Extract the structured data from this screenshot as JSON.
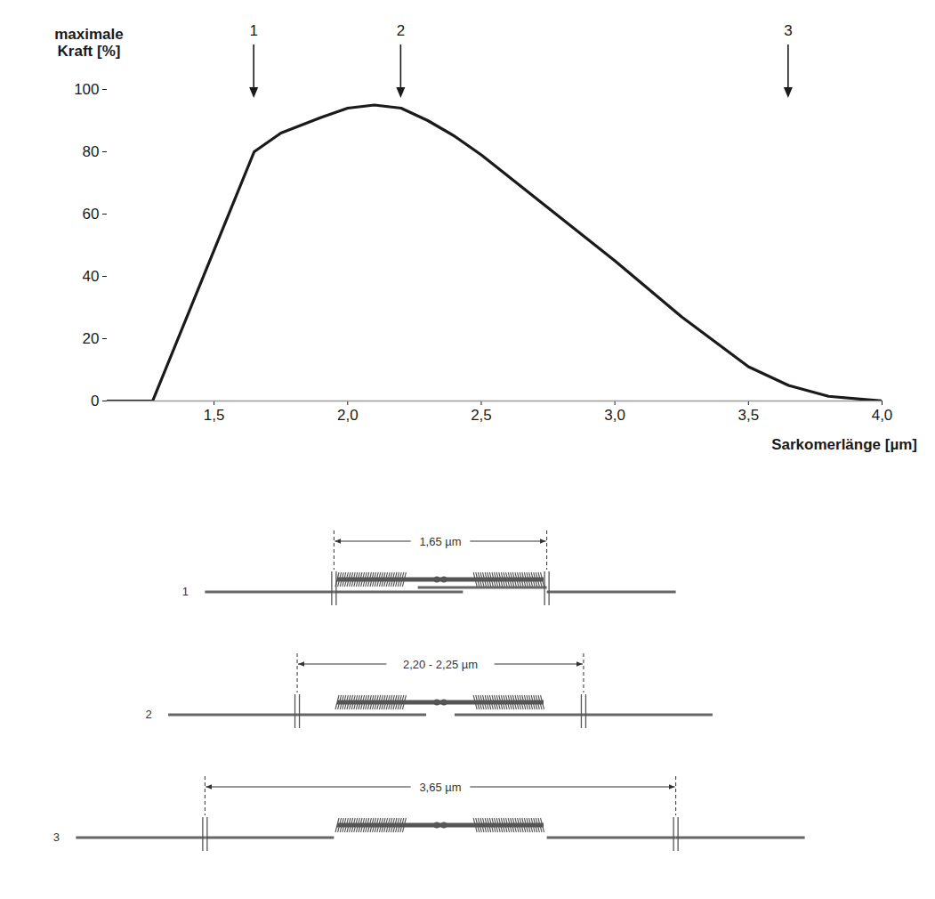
{
  "chart_data": {
    "type": "line",
    "x_label": "Sarkomerlänge [µm]",
    "y_label": "maximale Kraft [%]",
    "x": [
      1.1,
      1.27,
      1.65,
      1.75,
      1.9,
      2.0,
      2.1,
      2.2,
      2.3,
      2.4,
      2.5,
      2.75,
      3.0,
      3.25,
      3.5,
      3.65,
      3.8,
      4.0
    ],
    "values": [
      0,
      0,
      80,
      86,
      91,
      94,
      95,
      94,
      90,
      85,
      79,
      62,
      45,
      27,
      11,
      5,
      1.5,
      0
    ],
    "color": "#1a1a1a",
    "xlim": [
      1.1,
      4.0
    ],
    "ylim": [
      0,
      100
    ],
    "xticks": [
      {
        "value": 1.5,
        "label": "1,5"
      },
      {
        "value": 2.0,
        "label": "2,0"
      },
      {
        "value": 2.5,
        "label": "2,5"
      },
      {
        "value": 3.0,
        "label": "3,0"
      },
      {
        "value": 3.5,
        "label": "3,5"
      },
      {
        "value": 4.0,
        "label": "4,0"
      }
    ],
    "yticks": [
      0,
      20,
      40,
      60,
      80,
      100
    ],
    "grid": false,
    "annotations": [
      {
        "x": 1.65,
        "label": "1"
      },
      {
        "x": 2.2,
        "label": "2"
      },
      {
        "x": 3.65,
        "label": "3"
      }
    ]
  },
  "diagram": {
    "sarcomeres": [
      {
        "label": "1",
        "length": 1.65,
        "length_label": "1,65 µm"
      },
      {
        "label": "2",
        "length": 2.22,
        "length_label": "2,20 - 2,25 µm"
      },
      {
        "label": "3",
        "length": 3.65,
        "length_label": "3,65 µm"
      }
    ]
  }
}
